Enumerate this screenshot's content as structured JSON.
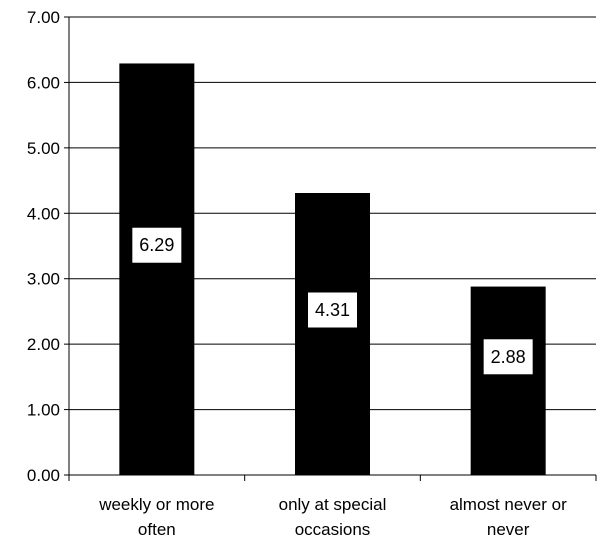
{
  "chart_data": {
    "type": "bar",
    "categories": [
      [
        "weekly or more",
        "often"
      ],
      [
        "only at special",
        "occasions"
      ],
      [
        "almost never or",
        "never"
      ]
    ],
    "values": [
      6.29,
      4.31,
      2.88
    ],
    "data_labels": [
      "6.29",
      "4.31",
      "2.88"
    ],
    "yticks": [
      "0.00",
      "1.00",
      "2.00",
      "3.00",
      "4.00",
      "5.00",
      "6.00",
      "7.00"
    ],
    "ylim": [
      0,
      7
    ],
    "bar_color": "#000000",
    "label_box_color": "#ffffff",
    "grid": true,
    "legend": false
  }
}
